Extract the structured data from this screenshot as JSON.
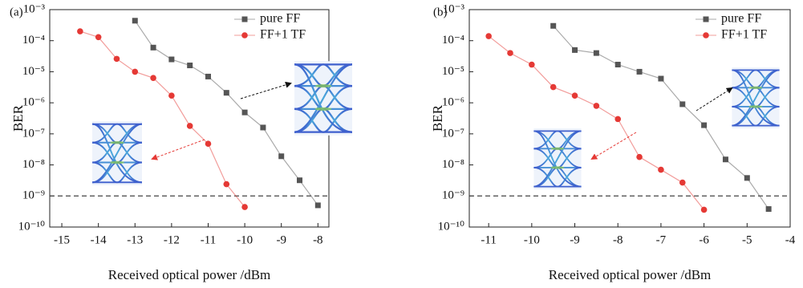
{
  "chart_data": [
    {
      "type": "line",
      "panel": "(a)",
      "y_label": "BER",
      "x_label": "Received optical power /dBm",
      "log_y": true,
      "legend": "upper right",
      "xlim": [
        -15.33,
        -7.7
      ],
      "xticks": [
        -15,
        -14,
        -13,
        -12,
        -11,
        -10,
        -9,
        -8
      ],
      "ylim": [
        1e-10,
        0.001
      ],
      "yticks": [
        {
          "value": 0.001,
          "label": "10⁻³"
        },
        {
          "value": 0.0001,
          "label": "10⁻⁴"
        },
        {
          "value": 1e-05,
          "label": "10⁻⁵"
        },
        {
          "value": 1e-06,
          "label": "10⁻⁶"
        },
        {
          "value": 1e-07,
          "label": "10⁻⁷"
        },
        {
          "value": 1e-08,
          "label": "10⁻⁸"
        },
        {
          "value": 1e-09,
          "label": "10⁻⁹"
        },
        {
          "value": 1e-10,
          "label": "10⁻¹⁰"
        }
      ],
      "reference_line": 1e-09,
      "series": [
        {
          "name": "pure FF",
          "color": "#555555",
          "x": [
            -13,
            -12.5,
            -12,
            -11.5,
            -11,
            -10.5,
            -10,
            -9.5,
            -9,
            -8.5,
            -8
          ],
          "values": [
            0.00044,
            6e-05,
            2.5e-05,
            1.6e-05,
            7e-06,
            2.1e-06,
            4.9e-07,
            1.6e-07,
            1.9e-08,
            3.2e-09,
            5e-10
          ]
        },
        {
          "name": "FF+1 TF",
          "color": "#e53935",
          "x": [
            -14.5,
            -14,
            -13.5,
            -13,
            -12.5,
            -12,
            -11.5,
            -11,
            -10.5,
            -10
          ],
          "values": [
            0.0002,
            0.00013,
            2.6e-05,
            1e-05,
            6.3e-06,
            1.7e-06,
            1.8e-07,
            4.8e-08,
            2.4e-09,
            4.4e-10
          ]
        }
      ]
    },
    {
      "type": "line",
      "panel": "(b)",
      "y_label": "BER",
      "x_label": "Received optical power /dBm",
      "log_y": true,
      "legend": "upper right",
      "xlim": [
        -11.45,
        -4
      ],
      "xticks": [
        -11,
        -10,
        -9,
        -8,
        -7,
        -6,
        -5,
        -4
      ],
      "ylim": [
        1e-10,
        0.001
      ],
      "yticks": [
        {
          "value": 0.001,
          "label": "10⁻³"
        },
        {
          "value": 0.0001,
          "label": "10⁻⁴"
        },
        {
          "value": 1e-05,
          "label": "10⁻⁵"
        },
        {
          "value": 1e-06,
          "label": "10⁻⁶"
        },
        {
          "value": 1e-07,
          "label": "10⁻⁷"
        },
        {
          "value": 1e-08,
          "label": "10⁻⁸"
        },
        {
          "value": 1e-09,
          "label": "10⁻⁹"
        },
        {
          "value": 1e-10,
          "label": "10⁻¹⁰"
        }
      ],
      "reference_line": 1e-09,
      "series": [
        {
          "name": "pure FF",
          "color": "#555555",
          "x": [
            -9.5,
            -9,
            -8.5,
            -8,
            -7.5,
            -7,
            -6.5,
            -6,
            -5.5,
            -5,
            -4.5
          ],
          "values": [
            0.0003,
            5e-05,
            4e-05,
            1.7e-05,
            1e-05,
            6e-06,
            9e-07,
            1.9e-07,
            1.5e-08,
            3.8e-09,
            3.8e-10
          ]
        },
        {
          "name": "FF+1 TF",
          "color": "#e53935",
          "x": [
            -11,
            -10.5,
            -10,
            -9.5,
            -9,
            -8.5,
            -8,
            -7.5,
            -7,
            -6.5,
            -6
          ],
          "values": [
            0.00014,
            4e-05,
            1.7e-05,
            3.2e-06,
            1.7e-06,
            8e-07,
            3e-07,
            1.8e-08,
            7e-09,
            2.7e-09,
            3.6e-10
          ]
        }
      ]
    }
  ]
}
